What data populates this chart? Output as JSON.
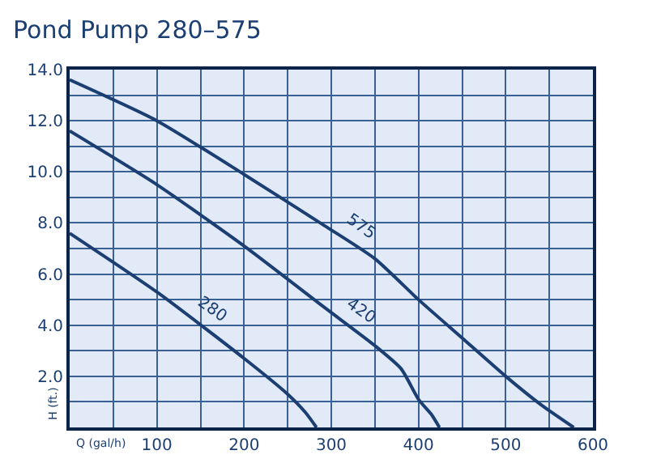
{
  "chart_data": {
    "type": "line",
    "title": "Pond Pump 280–575",
    "xlabel": "Q (gal/h)",
    "ylabel": "H (ft.)",
    "xlim": [
      0,
      600
    ],
    "xticks": [
      {
        "value": 0,
        "label": null
      },
      {
        "value": 50,
        "label": null
      },
      100,
      {
        "value": 150,
        "label": null
      },
      200,
      {
        "value": 250,
        "label": null
      },
      300,
      {
        "value": 350,
        "label": null
      },
      400,
      {
        "value": 450,
        "label": null
      },
      500,
      {
        "value": 550,
        "label": null
      },
      600
    ],
    "ylim": [
      0,
      14
    ],
    "yticks": [
      {
        "value": 0,
        "label": null
      },
      {
        "value": 1,
        "label": null
      },
      {
        "value": 2,
        "label": "2.0"
      },
      {
        "value": 3,
        "label": null
      },
      {
        "value": 4,
        "label": "4.0"
      },
      {
        "value": 5,
        "label": null
      },
      {
        "value": 6,
        "label": "6.0"
      },
      {
        "value": 7,
        "label": null
      },
      {
        "value": 8,
        "label": "8.0"
      },
      {
        "value": 9,
        "label": null
      },
      {
        "value": 10,
        "label": "10.0"
      },
      {
        "value": 11,
        "label": null
      },
      {
        "value": 12,
        "label": "12.0"
      },
      {
        "value": 13,
        "label": null
      },
      {
        "value": 14,
        "label": "14.0"
      }
    ],
    "grid": true,
    "marker": "none",
    "line_style": "solid",
    "series": [
      {
        "name": "575",
        "color": "#1b3f73",
        "x": [
          0,
          100,
          200,
          292,
          350,
          400,
          450,
          500,
          540,
          578
        ],
        "values": [
          13.6,
          12.0,
          9.9,
          7.9,
          6.6,
          5.0,
          3.5,
          2.0,
          0.9,
          0
        ]
      },
      {
        "name": "420",
        "color": "#1b3f73",
        "x": [
          0,
          100,
          200,
          292,
          350,
          380,
          400,
          415,
          424
        ],
        "values": [
          11.6,
          9.5,
          7.1,
          4.7,
          3.2,
          2.3,
          1.1,
          0.5,
          0
        ]
      },
      {
        "name": "280",
        "color": "#1b3f73",
        "x": [
          0,
          100,
          200,
          250,
          270,
          283
        ],
        "values": [
          7.6,
          5.3,
          2.7,
          1.3,
          0.6,
          0
        ]
      }
    ]
  }
}
